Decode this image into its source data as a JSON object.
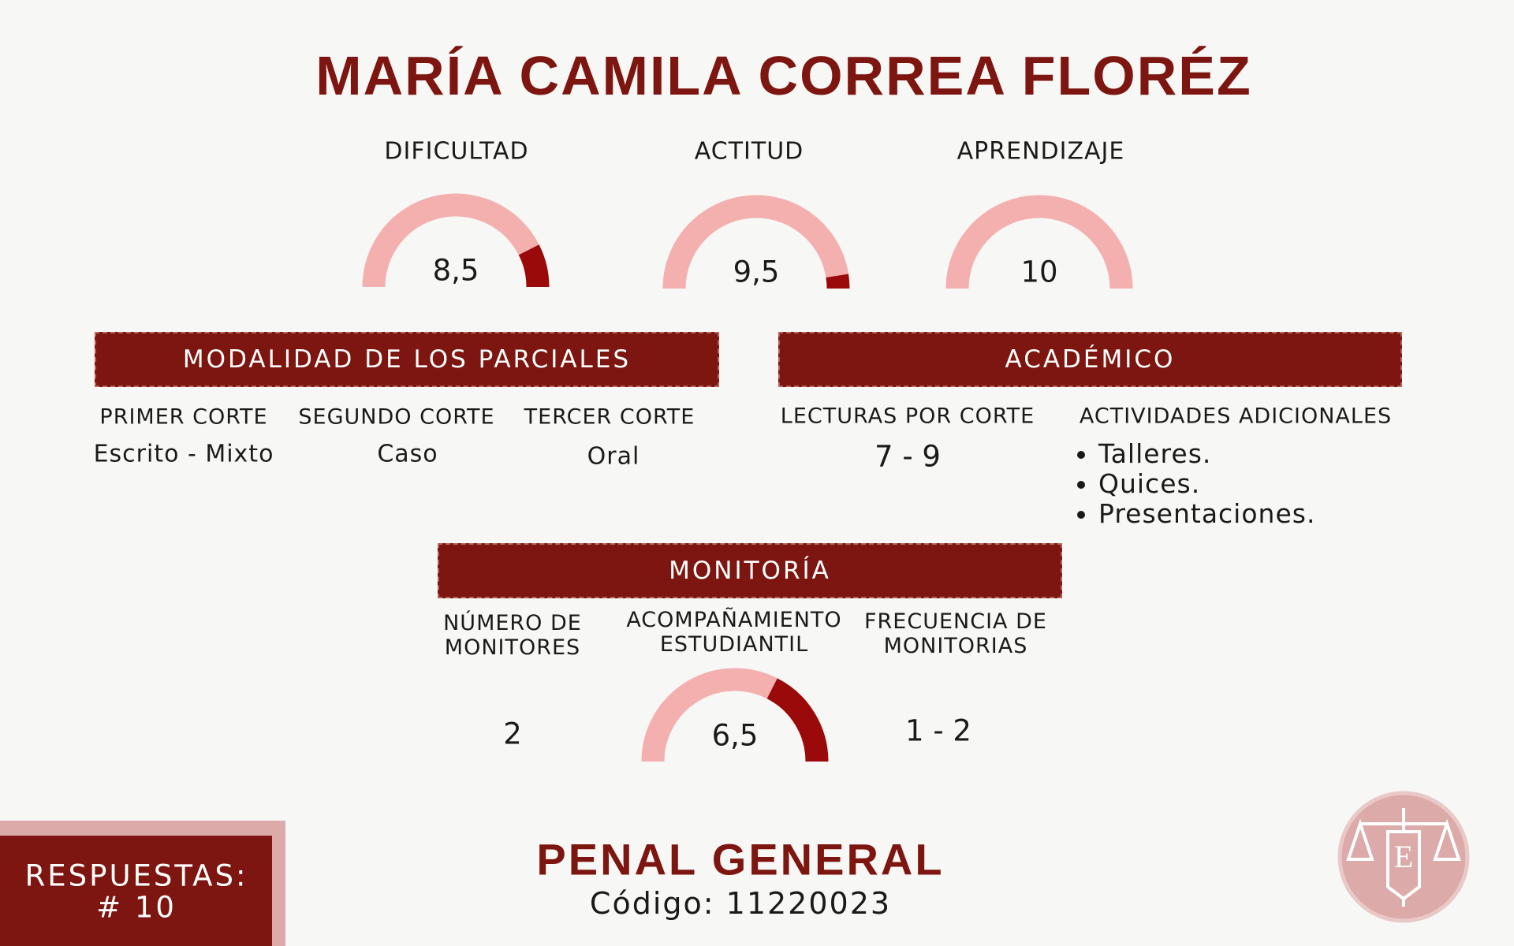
{
  "header": {
    "title": "MARÍA CAMILA CORREA FLORÉZ"
  },
  "gauge_lim": [
    0,
    10
  ],
  "gauges": [
    {
      "label": "DIFICULTAD",
      "value": 8.5,
      "value_label": "8,5"
    },
    {
      "label": "ACTITUD",
      "value": 9.5,
      "value_label": "9,5"
    },
    {
      "label": "APRENDIZAJE",
      "value": 10,
      "value_label": "10"
    }
  ],
  "modalidad": {
    "title": "MODALIDAD DE LOS PARCIALES",
    "items": [
      {
        "label": "PRIMER CORTE",
        "value": "Escrito - Mixto"
      },
      {
        "label": "SEGUNDO CORTE",
        "value": "Caso"
      },
      {
        "label": "TERCER CORTE",
        "value": "Oral"
      }
    ]
  },
  "academico": {
    "title": "ACADÉMICO",
    "lecturas_label": "LECTURAS POR CORTE",
    "lecturas": "7 - 9",
    "actividades_label": "ACTIVIDADES ADICIONALES",
    "actividades": [
      "Talleres.",
      "Quices.",
      "Presentaciones."
    ]
  },
  "monitoria": {
    "title": "MONITORÍA",
    "numero_label": "NÚMERO DE MONITORES",
    "numero": "2",
    "acompanamiento_label": "ACOMPAÑAMIENTO ESTUDIANTIL",
    "acompanamiento": {
      "value": 6.5,
      "value_label": "6,5"
    },
    "frecuencia_label": "FRECUENCIA DE MONITORIAS",
    "frecuencia": "1 - 2"
  },
  "footer": {
    "respuestas_label": "RESPUESTAS:",
    "respuestas": "# 10",
    "course": "PENAL GENERAL",
    "code": "Código: 11220023"
  }
}
